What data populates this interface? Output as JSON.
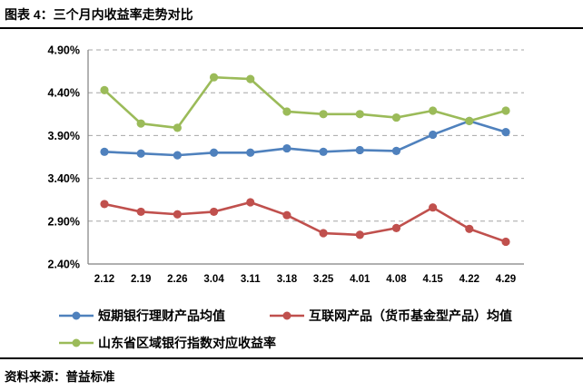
{
  "header": {
    "title": "图表 4：三个月内收益率走势对比"
  },
  "footer": {
    "source": "资料来源：普益标准"
  },
  "chart_data": {
    "type": "line",
    "title": "图表 4：三个月内收益率走势对比",
    "xlabel": "",
    "ylabel": "",
    "categories": [
      "2.12",
      "2.19",
      "2.26",
      "3.04",
      "3.11",
      "3.18",
      "3.25",
      "4.01",
      "4.08",
      "4.15",
      "4.22",
      "4.29"
    ],
    "series": [
      {
        "name": "短期银行理财产品均值",
        "color": "#4F81BD",
        "values": [
          3.71,
          3.69,
          3.67,
          3.7,
          3.7,
          3.75,
          3.71,
          3.73,
          3.72,
          3.91,
          4.07,
          3.94
        ]
      },
      {
        "name": "互联网产品（货币基金型产品）均值",
        "color": "#C0504D",
        "values": [
          3.1,
          3.01,
          2.98,
          3.01,
          3.12,
          2.97,
          2.76,
          2.74,
          2.82,
          3.06,
          2.81,
          2.66
        ]
      },
      {
        "name": "山东省区域银行指数对应收益率",
        "color": "#9BBB59",
        "values": [
          4.43,
          4.04,
          3.99,
          4.58,
          4.56,
          4.18,
          4.15,
          4.15,
          4.11,
          4.19,
          4.07,
          4.19
        ]
      }
    ],
    "ylim": [
      2.4,
      4.9
    ],
    "ytick_step": 0.5,
    "ytick_labels": [
      "2.40%",
      "2.90%",
      "3.40%",
      "3.90%",
      "4.40%",
      "4.90%"
    ],
    "grid": "horizontal-dashed",
    "legend_position": "bottom",
    "axis_color": "#808080",
    "grid_color": "#A6A6A6"
  }
}
